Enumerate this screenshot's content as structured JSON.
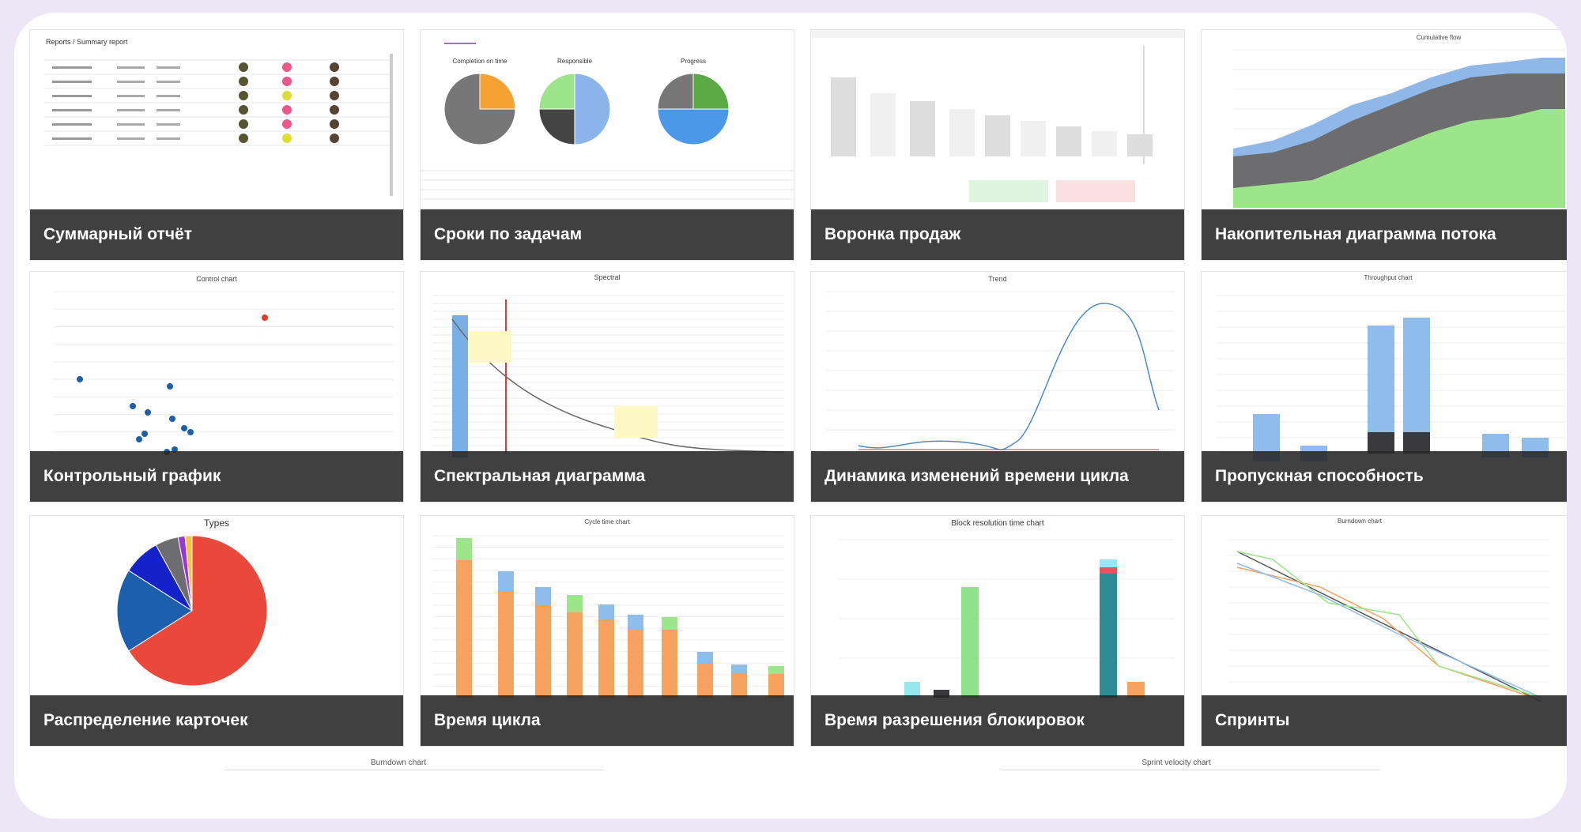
{
  "cards": [
    {
      "caption": "Суммарный отчёт",
      "labels": [
        "Reports / Summary report"
      ]
    },
    {
      "caption": "Сроки по задачам",
      "labels": [
        "Completion on time",
        "Responsible",
        "Progress"
      ]
    },
    {
      "caption": "Воронка продаж",
      "labels": []
    },
    {
      "caption": "Накопительная диаграмма потока",
      "labels": [
        "Cumulative flow"
      ]
    },
    {
      "caption": "Контрольный график",
      "labels": [
        "Control chart"
      ]
    },
    {
      "caption": "Спектральная диаграмма",
      "labels": [
        "Spectral"
      ]
    },
    {
      "caption": "Динамика изменений времени цикла",
      "labels": [
        "Trend"
      ]
    },
    {
      "caption": "Пропускная способность",
      "labels": [
        "Throughput chart"
      ]
    },
    {
      "caption": "Распределение карточек",
      "labels": [
        "Types"
      ]
    },
    {
      "caption": "Время цикла",
      "labels": [
        "Cycle time chart"
      ]
    },
    {
      "caption": "Время разрешения блокировок",
      "labels": [
        "Block resolution time chart"
      ]
    },
    {
      "caption": "Спринты",
      "labels": [
        "Burndown chart"
      ]
    }
  ],
  "more": [
    "Burndown chart",
    "Sprint velocity chart"
  ]
}
